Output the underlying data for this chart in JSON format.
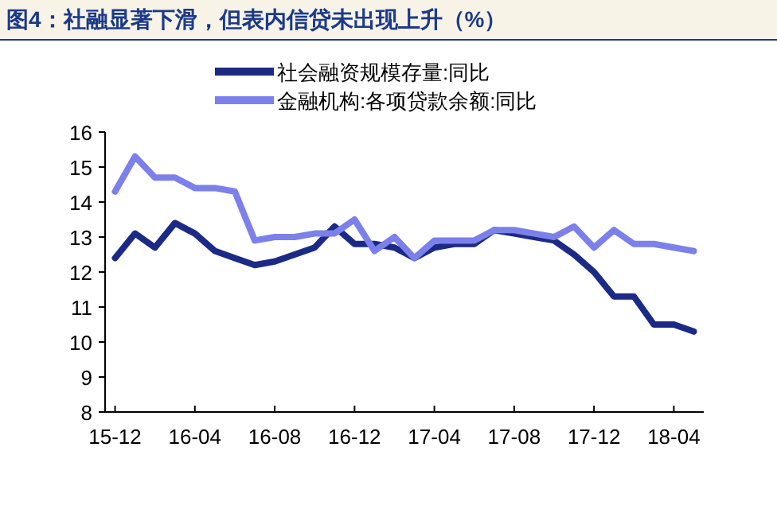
{
  "chart_data": {
    "type": "line",
    "title": "图4：社融显著下滑，但表内信贷未出现上升（%）",
    "categories": [
      "15-12",
      null,
      null,
      null,
      "16-04",
      null,
      null,
      null,
      "16-08",
      null,
      null,
      null,
      "16-12",
      null,
      null,
      null,
      "17-04",
      null,
      null,
      null,
      "17-08",
      null,
      null,
      null,
      "17-12",
      null,
      null,
      null,
      "18-04",
      null
    ],
    "series": [
      {
        "name": "社会融资规模存量:同比",
        "color": "#1c2a87",
        "values": [
          12.4,
          13.1,
          12.7,
          13.4,
          13.1,
          12.6,
          12.4,
          12.2,
          12.3,
          12.5,
          12.7,
          13.3,
          12.8,
          12.8,
          12.7,
          12.4,
          12.7,
          12.8,
          12.8,
          13.2,
          13.1,
          13.0,
          12.9,
          12.5,
          12.0,
          11.3,
          11.3,
          10.5,
          10.5,
          10.3
        ]
      },
      {
        "name": "金融机构:各项贷款余额:同比",
        "color": "#7b80ea",
        "values": [
          14.3,
          15.3,
          14.7,
          14.7,
          14.4,
          14.4,
          14.3,
          12.9,
          13.0,
          13.0,
          13.1,
          13.1,
          13.5,
          12.6,
          13.0,
          12.4,
          12.9,
          12.9,
          12.9,
          13.2,
          13.2,
          13.1,
          13.0,
          13.3,
          12.7,
          13.2,
          12.8,
          12.8,
          12.7,
          12.6
        ]
      }
    ],
    "ylim": [
      8,
      16
    ],
    "yticks": [
      8,
      9,
      10,
      11,
      12,
      13,
      14,
      15,
      16
    ],
    "legend": "top",
    "grid": false,
    "marker": "none",
    "line_style": "solid"
  }
}
